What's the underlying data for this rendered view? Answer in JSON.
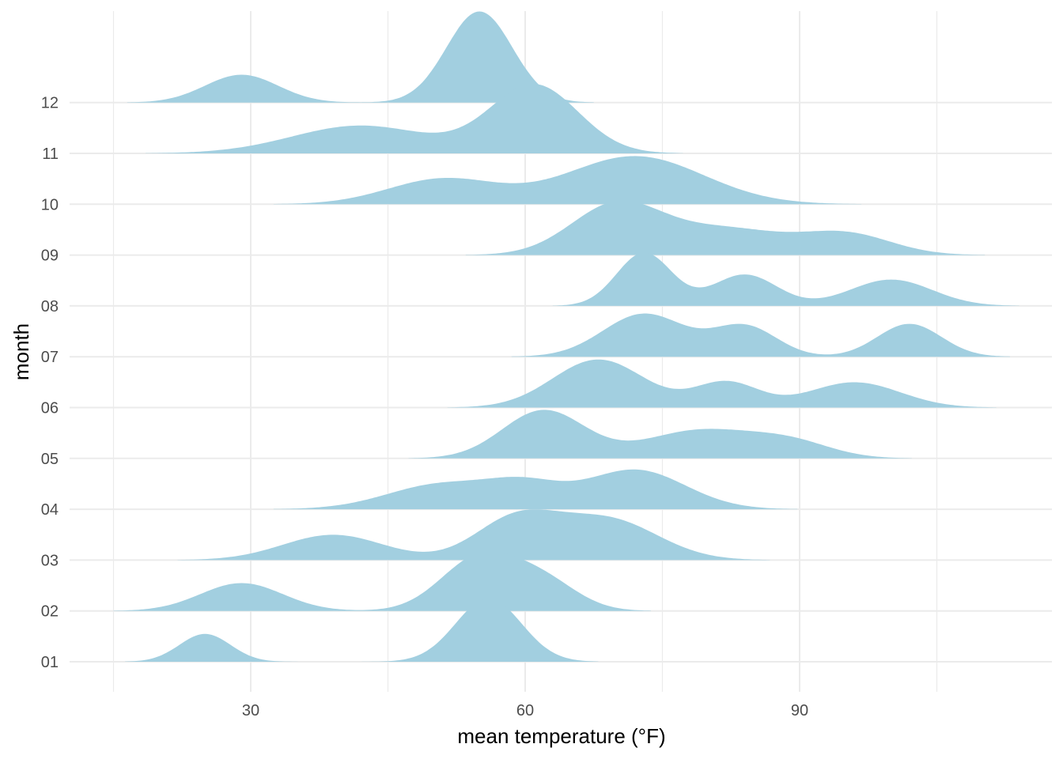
{
  "chart_data": {
    "type": "ridgeline",
    "title": "",
    "xlabel": "mean temperature (°F)",
    "ylabel": "month",
    "xlim": [
      15,
      115
    ],
    "x_ticks": [
      30,
      60,
      90
    ],
    "x_tick_labels": [
      "30",
      "60",
      "90"
    ],
    "grid": true,
    "fill_color": "#a2cfe0",
    "grid_color": "#ebebeb",
    "rows": [
      {
        "label": "01",
        "components": [
          [
            25,
            2.8,
            0.55
          ],
          [
            56,
            3.6,
            1.25
          ]
        ]
      },
      {
        "label": "02",
        "components": [
          [
            29,
            4.5,
            0.55
          ],
          [
            55,
            4.2,
            1.05
          ],
          [
            62,
            3.8,
            0.55
          ]
        ]
      },
      {
        "label": "03",
        "components": [
          [
            39,
            5.5,
            0.5
          ],
          [
            59,
            4.5,
            0.8
          ],
          [
            69,
            5.5,
            0.8
          ]
        ]
      },
      {
        "label": "04",
        "components": [
          [
            51,
            6,
            0.5
          ],
          [
            60,
            4,
            0.4
          ],
          [
            72,
            5.5,
            0.78
          ]
        ]
      },
      {
        "label": "05",
        "components": [
          [
            62,
            4.5,
            0.95
          ],
          [
            79,
            6,
            0.55
          ],
          [
            89,
            4.5,
            0.3
          ]
        ]
      },
      {
        "label": "06",
        "components": [
          [
            68,
            5,
            0.95
          ],
          [
            82,
            3.5,
            0.5
          ],
          [
            96,
            5,
            0.5
          ]
        ]
      },
      {
        "label": "07",
        "components": [
          [
            73,
            4.5,
            0.85
          ],
          [
            84,
            3.5,
            0.6
          ],
          [
            102,
            3.5,
            0.65
          ]
        ]
      },
      {
        "label": "08",
        "components": [
          [
            73,
            3,
            1.05
          ],
          [
            84,
            3.5,
            0.62
          ],
          [
            100,
            4.5,
            0.52
          ]
        ]
      },
      {
        "label": "09",
        "components": [
          [
            70,
            5,
            1.0
          ],
          [
            82,
            6,
            0.5
          ],
          [
            95,
            5,
            0.42
          ]
        ]
      },
      {
        "label": "10",
        "components": [
          [
            51,
            6,
            0.5
          ],
          [
            72,
            7.5,
            0.95
          ]
        ]
      },
      {
        "label": "11",
        "components": [
          [
            42,
            7.5,
            0.55
          ],
          [
            61,
            4.8,
            1.35
          ]
        ]
      },
      {
        "label": "12",
        "components": [
          [
            29,
            4,
            0.55
          ],
          [
            55,
            3.6,
            1.8
          ]
        ]
      }
    ]
  }
}
